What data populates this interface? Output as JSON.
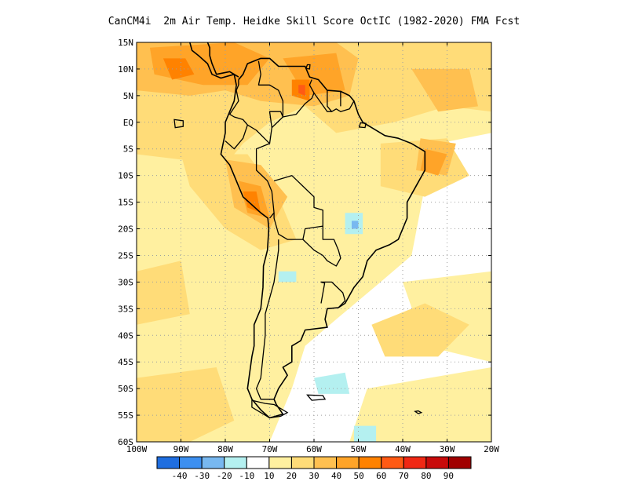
{
  "title": "CanCM4i  2m Air Temp. Heidke Skill Score OctIC (1982-2020) FMA Fcst",
  "map": {
    "lat_range": [
      -60,
      15
    ],
    "lon_range": [
      -100,
      -20
    ],
    "lat_ticks": [
      {
        "value": 15,
        "label": "15N"
      },
      {
        "value": 10,
        "label": "10N"
      },
      {
        "value": 5,
        "label": "5N"
      },
      {
        "value": 0,
        "label": "EQ"
      },
      {
        "value": -5,
        "label": "5S"
      },
      {
        "value": -10,
        "label": "10S"
      },
      {
        "value": -15,
        "label": "15S"
      },
      {
        "value": -20,
        "label": "20S"
      },
      {
        "value": -25,
        "label": "25S"
      },
      {
        "value": -30,
        "label": "30S"
      },
      {
        "value": -35,
        "label": "35S"
      },
      {
        "value": -40,
        "label": "40S"
      },
      {
        "value": -45,
        "label": "45S"
      },
      {
        "value": -50,
        "label": "50S"
      },
      {
        "value": -55,
        "label": "55S"
      },
      {
        "value": -60,
        "label": "60S"
      }
    ],
    "lon_ticks": [
      {
        "value": -100,
        "label": "100W"
      },
      {
        "value": -90,
        "label": "90W"
      },
      {
        "value": -80,
        "label": "80W"
      },
      {
        "value": -70,
        "label": "70W"
      },
      {
        "value": -60,
        "label": "60W"
      },
      {
        "value": -50,
        "label": "50W"
      },
      {
        "value": -40,
        "label": "40W"
      },
      {
        "value": -30,
        "label": "30W"
      },
      {
        "value": -20,
        "label": "20W"
      }
    ],
    "grid": true,
    "background_color": "#ffffff"
  },
  "colorbar": {
    "colors": [
      "#1f6ee0",
      "#3c8ff0",
      "#78b8f0",
      "#b4f0f0",
      "#ffffff",
      "#fff0a0",
      "#ffdc78",
      "#ffc050",
      "#ffa428",
      "#ff8200",
      "#ff5a14",
      "#f02814",
      "#c80a0a",
      "#a00000"
    ],
    "labels": [
      "-40",
      "-30",
      "-20",
      "-10",
      "10",
      "20",
      "30",
      "40",
      "50",
      "60",
      "70",
      "80",
      "90"
    ]
  },
  "regions": [
    {
      "level": 20,
      "color": "#fff0a0",
      "points": [
        [
          -100,
          15
        ],
        [
          -20,
          15
        ],
        [
          -20,
          -2
        ],
        [
          -32,
          -4
        ],
        [
          -35,
          -12
        ],
        [
          -38,
          -25
        ],
        [
          -45,
          -30
        ],
        [
          -55,
          -37
        ],
        [
          -62,
          -42
        ],
        [
          -65,
          -50
        ],
        [
          -68,
          -56
        ],
        [
          -70,
          -60
        ],
        [
          -100,
          -60
        ]
      ]
    },
    {
      "level": 20,
      "color": "#fff0a0",
      "points": [
        [
          -40,
          -30
        ],
        [
          -20,
          -28
        ],
        [
          -20,
          -45
        ],
        [
          -35,
          -42
        ]
      ]
    },
    {
      "level": 20,
      "color": "#fff0a0",
      "points": [
        [
          -48,
          -50
        ],
        [
          -20,
          -46
        ],
        [
          -20,
          -60
        ],
        [
          -52,
          -60
        ]
      ]
    },
    {
      "level": 30,
      "color": "#ffdc78",
      "points": [
        [
          -100,
          15
        ],
        [
          -20,
          15
        ],
        [
          -20,
          2
        ],
        [
          -30,
          3
        ],
        [
          -42,
          0
        ],
        [
          -55,
          -2
        ],
        [
          -62,
          3
        ],
        [
          -70,
          0
        ],
        [
          -76,
          -4
        ],
        [
          -80,
          -8
        ],
        [
          -100,
          -6
        ]
      ]
    },
    {
      "level": 30,
      "color": "#ffdc78",
      "points": [
        [
          -45,
          -4
        ],
        [
          -30,
          -3
        ],
        [
          -25,
          -10
        ],
        [
          -35,
          -14
        ],
        [
          -45,
          -12
        ]
      ]
    },
    {
      "level": 30,
      "color": "#ffdc78",
      "points": [
        [
          -90,
          -6
        ],
        [
          -75,
          -6
        ],
        [
          -68,
          -14
        ],
        [
          -64,
          -22
        ],
        [
          -72,
          -24
        ],
        [
          -80,
          -20
        ],
        [
          -88,
          -12
        ]
      ]
    },
    {
      "level": 30,
      "color": "#ffdc78",
      "points": [
        [
          -100,
          -48
        ],
        [
          -82,
          -46
        ],
        [
          -78,
          -56
        ],
        [
          -88,
          -60
        ],
        [
          -100,
          -60
        ]
      ]
    },
    {
      "level": 30,
      "color": "#ffdc78",
      "points": [
        [
          -47,
          -38
        ],
        [
          -35,
          -34
        ],
        [
          -25,
          -38
        ],
        [
          -32,
          -44
        ],
        [
          -44,
          -44
        ]
      ]
    },
    {
      "level": 30,
      "color": "#ffdc78",
      "points": [
        [
          -100,
          -28
        ],
        [
          -90,
          -26
        ],
        [
          -88,
          -36
        ],
        [
          -100,
          -38
        ]
      ]
    },
    {
      "level": 40,
      "color": "#ffc050",
      "points": [
        [
          -100,
          15
        ],
        [
          -55,
          15
        ],
        [
          -50,
          12
        ],
        [
          -52,
          5
        ],
        [
          -60,
          3
        ],
        [
          -72,
          4
        ],
        [
          -80,
          6
        ],
        [
          -88,
          5
        ],
        [
          -100,
          6
        ]
      ]
    },
    {
      "level": 40,
      "color": "#ffc050",
      "points": [
        [
          -38,
          10
        ],
        [
          -25,
          10
        ],
        [
          -23,
          3
        ],
        [
          -32,
          2
        ]
      ]
    },
    {
      "level": 40,
      "color": "#ffc050",
      "points": [
        [
          -80,
          -7
        ],
        [
          -72,
          -8
        ],
        [
          -66,
          -14
        ],
        [
          -70,
          -20
        ],
        [
          -78,
          -16
        ]
      ]
    },
    {
      "level": 40,
      "color": "#ffc050",
      "points": [
        [
          -36,
          -3
        ],
        [
          -28,
          -4
        ],
        [
          -30,
          -10
        ],
        [
          -37,
          -9
        ]
      ]
    },
    {
      "level": 50,
      "color": "#ffa428",
      "points": [
        [
          -97,
          14
        ],
        [
          -78,
          15
        ],
        [
          -70,
          12
        ],
        [
          -75,
          7
        ],
        [
          -85,
          7
        ],
        [
          -96,
          9
        ]
      ]
    },
    {
      "level": 50,
      "color": "#ffa428",
      "points": [
        [
          -67,
          12
        ],
        [
          -55,
          13
        ],
        [
          -53,
          6
        ],
        [
          -62,
          5
        ]
      ]
    },
    {
      "level": 50,
      "color": "#ffa428",
      "points": [
        [
          -77,
          -11
        ],
        [
          -72,
          -12
        ],
        [
          -70,
          -18
        ],
        [
          -75,
          -17
        ]
      ]
    },
    {
      "level": 50,
      "color": "#ffa428",
      "points": [
        [
          -35,
          -5
        ],
        [
          -30,
          -6
        ],
        [
          -32,
          -10
        ],
        [
          -36,
          -9
        ]
      ]
    },
    {
      "level": 60,
      "color": "#ff8200",
      "points": [
        [
          -94,
          12
        ],
        [
          -89,
          12
        ],
        [
          -87,
          9
        ],
        [
          -92,
          8
        ]
      ]
    },
    {
      "level": 60,
      "color": "#ff8200",
      "points": [
        [
          -65,
          8
        ],
        [
          -61,
          8
        ],
        [
          -61,
          4
        ],
        [
          -65,
          5
        ]
      ]
    },
    {
      "level": 60,
      "color": "#ff8200",
      "points": [
        [
          -76,
          -13
        ],
        [
          -73,
          -13
        ],
        [
          -72,
          -17
        ],
        [
          -75,
          -16
        ]
      ]
    },
    {
      "level": 70,
      "color": "#ff5a14",
      "points": [
        [
          -63.5,
          7
        ],
        [
          -62,
          7
        ],
        [
          -62,
          5
        ],
        [
          -63.5,
          5.5
        ]
      ]
    },
    {
      "level": -10,
      "color": "#b4f0f0",
      "points": [
        [
          -53,
          -17
        ],
        [
          -49,
          -17
        ],
        [
          -49,
          -21
        ],
        [
          -53,
          -21
        ]
      ]
    },
    {
      "level": -10,
      "color": "#b4f0f0",
      "points": [
        [
          -68,
          -28
        ],
        [
          -64,
          -28
        ],
        [
          -64,
          -30
        ],
        [
          -68,
          -30
        ]
      ]
    },
    {
      "level": -10,
      "color": "#b4f0f0",
      "points": [
        [
          -60,
          -48
        ],
        [
          -53,
          -47
        ],
        [
          -52,
          -51
        ],
        [
          -59,
          -51
        ]
      ]
    },
    {
      "level": -10,
      "color": "#b4f0f0",
      "points": [
        [
          -51,
          -57
        ],
        [
          -46,
          -57
        ],
        [
          -46,
          -60
        ],
        [
          -51,
          -60
        ]
      ]
    },
    {
      "level": -20,
      "color": "#78b8f0",
      "points": [
        [
          -51.5,
          -18.5
        ],
        [
          -50,
          -18.5
        ],
        [
          -50,
          -20
        ],
        [
          -51.5,
          -20
        ]
      ]
    }
  ],
  "coastline": [
    [
      -77,
      8
    ],
    [
      -76,
      9
    ],
    [
      -75,
      11
    ],
    [
      -72,
      12
    ],
    [
      -70,
      12
    ],
    [
      -68,
      10.5
    ],
    [
      -64,
      10.5
    ],
    [
      -62,
      10.5
    ],
    [
      -61,
      8.5
    ],
    [
      -59,
      8
    ],
    [
      -57,
      6
    ],
    [
      -54,
      5.8
    ],
    [
      -52,
      5
    ],
    [
      -51,
      4
    ],
    [
      -50,
      1.5
    ],
    [
      -49,
      0
    ],
    [
      -47,
      -1
    ],
    [
      -44,
      -2.5
    ],
    [
      -41,
      -3
    ],
    [
      -38,
      -4
    ],
    [
      -35,
      -5.5
    ],
    [
      -35,
      -9
    ],
    [
      -37,
      -12
    ],
    [
      -39,
      -15
    ],
    [
      -39,
      -18
    ],
    [
      -40,
      -20
    ],
    [
      -41,
      -22
    ],
    [
      -43,
      -23
    ],
    [
      -46,
      -24
    ],
    [
      -48,
      -26
    ],
    [
      -49,
      -29
    ],
    [
      -51,
      -31
    ],
    [
      -53,
      -34
    ],
    [
      -54.5,
      -34.8
    ],
    [
      -57,
      -35
    ],
    [
      -57.5,
      -37
    ],
    [
      -57,
      -38.5
    ],
    [
      -62,
      -39
    ],
    [
      -63,
      -41
    ],
    [
      -65,
      -42
    ],
    [
      -65,
      -45
    ],
    [
      -67,
      -46
    ],
    [
      -66,
      -47.5
    ],
    [
      -68,
      -50
    ],
    [
      -69,
      -52
    ],
    [
      -68.5,
      -53
    ],
    [
      -67,
      -54.8
    ],
    [
      -70,
      -55.5
    ],
    [
      -72,
      -54
    ],
    [
      -74,
      -52
    ],
    [
      -75,
      -50
    ],
    [
      -74.5,
      -47
    ],
    [
      -74,
      -44
    ],
    [
      -73.5,
      -42
    ],
    [
      -73.5,
      -38
    ],
    [
      -72,
      -35
    ],
    [
      -71.5,
      -31
    ],
    [
      -71.4,
      -27
    ],
    [
      -70.5,
      -24
    ],
    [
      -70.2,
      -20
    ],
    [
      -70.4,
      -18
    ],
    [
      -72,
      -17
    ],
    [
      -76,
      -14
    ],
    [
      -77,
      -12
    ],
    [
      -79,
      -8
    ],
    [
      -81,
      -6
    ],
    [
      -80,
      -2
    ],
    [
      -80,
      0
    ],
    [
      -79,
      2
    ],
    [
      -78,
      4
    ],
    [
      -77.5,
      7
    ],
    [
      -78,
      9
    ],
    [
      -81,
      8.3
    ],
    [
      -83,
      9
    ],
    [
      -84,
      11
    ],
    [
      -86,
      12.5
    ],
    [
      -87.5,
      13.5
    ],
    [
      -88,
      15
    ]
  ],
  "coastline_north": [
    [
      -84,
      15
    ],
    [
      -83.5,
      14
    ],
    [
      -83.5,
      12.5
    ],
    [
      -83,
      11
    ],
    [
      -82,
      9
    ],
    [
      -79,
      9.5
    ],
    [
      -77,
      8.5
    ]
  ],
  "borders": [
    [
      [
        -77,
        8
      ],
      [
        -77,
        7
      ],
      [
        -77.5,
        6
      ],
      [
        -77,
        4
      ],
      [
        -79,
        1.5
      ],
      [
        -78,
        1
      ],
      [
        -76,
        0.5
      ],
      [
        -75,
        -0.5
      ],
      [
        -73,
        -1.5
      ],
      [
        -70,
        -4
      ],
      [
        -69.5,
        -1
      ],
      [
        -70,
        2
      ],
      [
        -67.5,
        2
      ],
      [
        -67,
        1
      ],
      [
        -67,
        4
      ],
      [
        -68,
        6
      ],
      [
        -70,
        7
      ],
      [
        -72.5,
        7
      ],
      [
        -72,
        9
      ],
      [
        -72.5,
        11.5
      ]
    ],
    [
      [
        -80,
        -3.5
      ],
      [
        -78,
        -5
      ],
      [
        -76,
        -3
      ],
      [
        -75,
        -0.5
      ]
    ],
    [
      [
        -70,
        -4
      ],
      [
        -73,
        -5
      ],
      [
        -73,
        -9
      ],
      [
        -70.5,
        -11
      ],
      [
        -69.5,
        -13
      ],
      [
        -69,
        -17
      ],
      [
        -70,
        -18
      ]
    ],
    [
      [
        -69,
        -11
      ],
      [
        -65,
        -10
      ],
      [
        -60,
        -14
      ],
      [
        -60,
        -16
      ],
      [
        -58,
        -16.5
      ],
      [
        -58,
        -19.5
      ],
      [
        -62,
        -20
      ],
      [
        -62.5,
        -22
      ],
      [
        -66,
        -22
      ],
      [
        -68,
        -21
      ],
      [
        -69,
        -18
      ],
      [
        -69,
        -17
      ]
    ],
    [
      [
        -68,
        -22
      ],
      [
        -68,
        -24
      ],
      [
        -68.5,
        -27
      ],
      [
        -69,
        -30
      ],
      [
        -70,
        -33
      ],
      [
        -71,
        -36
      ],
      [
        -71,
        -40
      ],
      [
        -71.5,
        -44
      ],
      [
        -72,
        -48
      ],
      [
        -73,
        -50
      ],
      [
        -72,
        -52
      ],
      [
        -69,
        -52
      ]
    ],
    [
      [
        -62.5,
        -22
      ],
      [
        -60,
        -24
      ],
      [
        -58,
        -25
      ],
      [
        -57,
        -26
      ],
      [
        -55,
        -27
      ],
      [
        -54,
        -25.5
      ],
      [
        -54.5,
        -24
      ],
      [
        -55.5,
        -22
      ],
      [
        -58,
        -22
      ],
      [
        -58,
        -19.5
      ]
    ],
    [
      [
        -58.5,
        -30
      ],
      [
        -56,
        -30
      ],
      [
        -53.5,
        -32
      ],
      [
        -53,
        -33.5
      ],
      [
        -54.5,
        -34.8
      ]
    ],
    [
      [
        -58.5,
        -30
      ],
      [
        -57.6,
        -30.2
      ],
      [
        -58.2,
        -33
      ],
      [
        -58.4,
        -34
      ]
    ],
    [
      [
        -67,
        1
      ],
      [
        -64,
        1.5
      ],
      [
        -62,
        3.5
      ],
      [
        -60.5,
        4.5
      ],
      [
        -60,
        5.5
      ],
      [
        -61,
        7
      ],
      [
        -60.5,
        8
      ]
    ],
    [
      [
        -60,
        5.5
      ],
      [
        -57,
        2
      ],
      [
        -56,
        2
      ],
      [
        -55,
        2.5
      ],
      [
        -54,
        2
      ],
      [
        -52,
        2.5
      ],
      [
        -51,
        4
      ]
    ],
    [
      [
        -57,
        6
      ],
      [
        -57,
        3
      ],
      [
        -56,
        2
      ]
    ],
    [
      [
        -54,
        5.8
      ],
      [
        -54,
        3
      ]
    ],
    [
      [
        -69.5,
        -1
      ],
      [
        -67,
        1
      ]
    ]
  ],
  "islands": [
    [
      [
        -74,
        -52.2
      ],
      [
        -71,
        -52.8
      ],
      [
        -69,
        -53
      ],
      [
        -66,
        -54.5
      ],
      [
        -67.5,
        -55.2
      ],
      [
        -70,
        -55.5
      ],
      [
        -72,
        -54.5
      ],
      [
        -74,
        -53.5
      ]
    ],
    [
      [
        -61.5,
        -51.2
      ],
      [
        -58,
        -51.3
      ],
      [
        -57.5,
        -52
      ],
      [
        -60.5,
        -52.2
      ]
    ],
    [
      [
        -91.5,
        0.5
      ],
      [
        -89.5,
        0.3
      ],
      [
        -89.5,
        -0.8
      ],
      [
        -91.3,
        -1
      ]
    ],
    [
      [
        -49.5,
        -0.1
      ],
      [
        -48.3,
        -0.2
      ],
      [
        -48.5,
        -1
      ],
      [
        -49.8,
        -0.9
      ]
    ],
    [
      [
        -61.5,
        10.8
      ],
      [
        -60.9,
        10.8
      ],
      [
        -61,
        10
      ],
      [
        -61.8,
        10.1
      ]
    ],
    [
      [
        -36.5,
        -54.2
      ],
      [
        -35.8,
        -54.5
      ],
      [
        -36.5,
        -54.7
      ],
      [
        -37.2,
        -54.3
      ]
    ]
  ]
}
